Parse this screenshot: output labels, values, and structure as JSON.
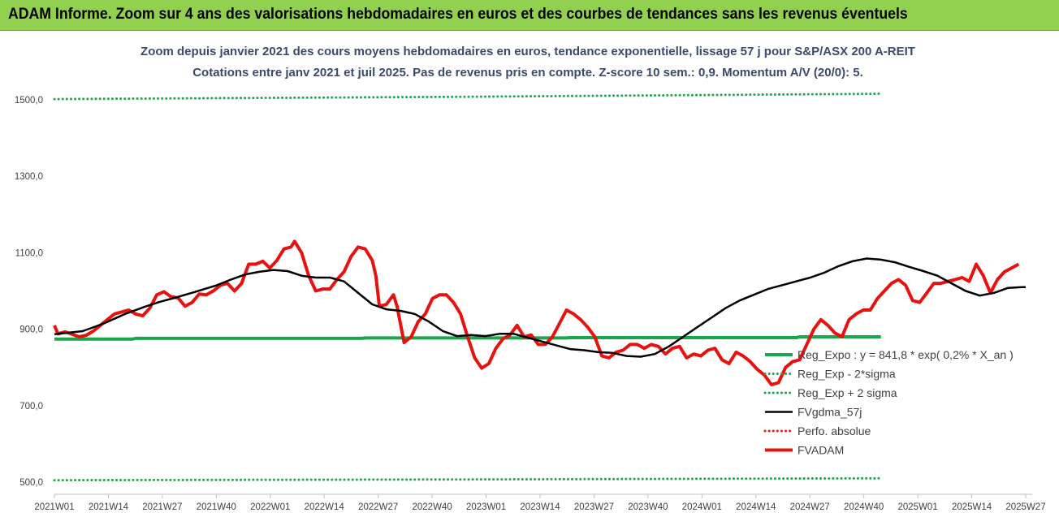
{
  "header": {
    "title": "ADAM Informe. Zoom sur 4 ans des valorisations hebdomadaires en euros et des courbes de tendances sans les revenus éventuels"
  },
  "colors": {
    "banner_bg": "#92d050",
    "reg_expo": "#1aa64a",
    "reg_minus": "#22a74f",
    "reg_plus": "#22a74f",
    "gdma": "#000000",
    "perfo": "#e02020",
    "fvadam": "#e8110f"
  },
  "chart_data": {
    "type": "line",
    "title": "Zoom depuis janvier 2021 des cours moyens hebdomadaires en euros, tendance exponentielle, lissage 57 j pour S&P/ASX 200 A-REIT",
    "subtitle": "Cotations entre janv 2021 et juil 2025. Pas de revenus pris en compte. Z-score 10 sem.: 0,9. Momentum A/V (20/0): 5.",
    "xlabel": "",
    "ylabel": "",
    "ylim": [
      500,
      1500
    ],
    "yticks": [
      "500,0",
      "700,0",
      "900,0",
      "1100,0",
      "1300,0",
      "1500,0"
    ],
    "ytick_values": [
      500,
      700,
      900,
      1100,
      1300,
      1500
    ],
    "xticks": [
      "2021W01",
      "2021W14",
      "2021W27",
      "2021W40",
      "2022W01",
      "2022W14",
      "2022W27",
      "2022W40",
      "2023W01",
      "2023W14",
      "2023W27",
      "2023W40",
      "2024W01",
      "2024W14",
      "2024W27",
      "2024W40",
      "2025W01",
      "2025W14",
      "2025W27"
    ],
    "x_range_weeks": [
      0,
      234
    ],
    "grid": false,
    "legend_position": "bottom-right",
    "series": [
      {
        "name": "Reg_Expo : y = 841,8 * exp( 0,2% *  X_an )",
        "style": "solid-thick",
        "color_key": "reg_expo",
        "points": [
          [
            0,
            874
          ],
          [
            22,
            874
          ],
          [
            23,
            876
          ],
          [
            87,
            876
          ],
          [
            88,
            877
          ],
          [
            145,
            877
          ],
          [
            146,
            878
          ],
          [
            210,
            878
          ],
          [
            211,
            880
          ],
          [
            234,
            880
          ]
        ]
      },
      {
        "name": "Reg_Exp - 2*sigma",
        "style": "dotted",
        "color_key": "reg_minus",
        "points": [
          [
            0,
            505
          ],
          [
            117,
            507
          ],
          [
            234,
            510
          ]
        ]
      },
      {
        "name": "Reg_Exp + 2 sigma",
        "style": "dotted",
        "color_key": "reg_plus",
        "points": [
          [
            0,
            1502
          ],
          [
            117,
            1508
          ],
          [
            234,
            1516
          ]
        ]
      },
      {
        "name": "FVgdma_57j",
        "style": "solid",
        "color_key": "gdma",
        "points": [
          [
            0,
            887
          ],
          [
            8,
            895
          ],
          [
            14,
            915
          ],
          [
            20,
            940
          ],
          [
            26,
            960
          ],
          [
            30,
            972
          ],
          [
            34,
            982
          ],
          [
            40,
            998
          ],
          [
            46,
            1015
          ],
          [
            50,
            1030
          ],
          [
            54,
            1043
          ],
          [
            58,
            1050
          ],
          [
            62,
            1055
          ],
          [
            66,
            1052
          ],
          [
            70,
            1040
          ],
          [
            74,
            1035
          ],
          [
            78,
            1035
          ],
          [
            82,
            1025
          ],
          [
            86,
            995
          ],
          [
            90,
            965
          ],
          [
            94,
            952
          ],
          [
            98,
            948
          ],
          [
            102,
            940
          ],
          [
            106,
            920
          ],
          [
            110,
            895
          ],
          [
            114,
            882
          ],
          [
            118,
            885
          ],
          [
            122,
            882
          ],
          [
            126,
            888
          ],
          [
            130,
            888
          ],
          [
            134,
            878
          ],
          [
            138,
            868
          ],
          [
            142,
            858
          ],
          [
            146,
            848
          ],
          [
            150,
            845
          ],
          [
            154,
            840
          ],
          [
            158,
            838
          ],
          [
            162,
            830
          ],
          [
            166,
            828
          ],
          [
            170,
            835
          ],
          [
            174,
            855
          ],
          [
            178,
            880
          ],
          [
            182,
            905
          ],
          [
            186,
            930
          ],
          [
            190,
            955
          ],
          [
            194,
            975
          ],
          [
            198,
            990
          ],
          [
            202,
            1005
          ],
          [
            206,
            1015
          ],
          [
            210,
            1025
          ],
          [
            214,
            1035
          ],
          [
            218,
            1048
          ],
          [
            222,
            1065
          ],
          [
            226,
            1078
          ],
          [
            230,
            1085
          ],
          [
            234,
            1082
          ],
          [
            238,
            1075
          ],
          [
            242,
            1063
          ],
          [
            246,
            1052
          ],
          [
            250,
            1040
          ],
          [
            254,
            1020
          ],
          [
            258,
            1000
          ],
          [
            262,
            988
          ],
          [
            266,
            995
          ],
          [
            270,
            1008
          ],
          [
            274,
            1010
          ],
          [
            275,
            1010
          ]
        ]
      },
      {
        "name": "Perfo. absolue",
        "style": "dotted",
        "color_key": "perfo",
        "points": []
      },
      {
        "name": "FVADAM",
        "style": "solid-thick",
        "color_key": "fvadam",
        "points": [
          [
            0,
            910
          ],
          [
            1,
            888
          ],
          [
            3,
            893
          ],
          [
            5,
            887
          ],
          [
            7,
            880
          ],
          [
            9,
            884
          ],
          [
            11,
            895
          ],
          [
            13,
            910
          ],
          [
            15,
            925
          ],
          [
            17,
            940
          ],
          [
            19,
            945
          ],
          [
            21,
            950
          ],
          [
            23,
            940
          ],
          [
            25,
            935
          ],
          [
            27,
            955
          ],
          [
            29,
            990
          ],
          [
            31,
            998
          ],
          [
            33,
            985
          ],
          [
            35,
            982
          ],
          [
            37,
            960
          ],
          [
            39,
            970
          ],
          [
            41,
            992
          ],
          [
            43,
            990
          ],
          [
            45,
            1000
          ],
          [
            47,
            1015
          ],
          [
            49,
            1020
          ],
          [
            51,
            1000
          ],
          [
            53,
            1020
          ],
          [
            55,
            1070
          ],
          [
            57,
            1070
          ],
          [
            59,
            1078
          ],
          [
            61,
            1060
          ],
          [
            63,
            1080
          ],
          [
            65,
            1110
          ],
          [
            67,
            1115
          ],
          [
            68,
            1130
          ],
          [
            70,
            1100
          ],
          [
            72,
            1040
          ],
          [
            74,
            1000
          ],
          [
            76,
            1005
          ],
          [
            78,
            1005
          ],
          [
            80,
            1030
          ],
          [
            82,
            1050
          ],
          [
            84,
            1090
          ],
          [
            86,
            1115
          ],
          [
            88,
            1110
          ],
          [
            90,
            1080
          ],
          [
            91,
            1040
          ],
          [
            92,
            960
          ],
          [
            94,
            965
          ],
          [
            96,
            990
          ],
          [
            97,
            960
          ],
          [
            99,
            865
          ],
          [
            101,
            880
          ],
          [
            103,
            920
          ],
          [
            105,
            940
          ],
          [
            107,
            980
          ],
          [
            109,
            990
          ],
          [
            111,
            990
          ],
          [
            113,
            970
          ],
          [
            115,
            940
          ],
          [
            117,
            880
          ],
          [
            119,
            825
          ],
          [
            121,
            798
          ],
          [
            123,
            810
          ],
          [
            125,
            850
          ],
          [
            127,
            875
          ],
          [
            129,
            885
          ],
          [
            131,
            910
          ],
          [
            133,
            880
          ],
          [
            135,
            885
          ],
          [
            137,
            860
          ],
          [
            139,
            860
          ],
          [
            141,
            880
          ],
          [
            143,
            915
          ],
          [
            145,
            950
          ],
          [
            147,
            940
          ],
          [
            149,
            925
          ],
          [
            151,
            905
          ],
          [
            153,
            880
          ],
          [
            155,
            830
          ],
          [
            157,
            825
          ],
          [
            159,
            840
          ],
          [
            161,
            845
          ],
          [
            163,
            860
          ],
          [
            165,
            860
          ],
          [
            167,
            850
          ],
          [
            169,
            860
          ],
          [
            171,
            855
          ],
          [
            173,
            835
          ],
          [
            175,
            850
          ],
          [
            177,
            855
          ],
          [
            179,
            825
          ],
          [
            181,
            835
          ],
          [
            183,
            830
          ],
          [
            185,
            845
          ],
          [
            187,
            850
          ],
          [
            189,
            820
          ],
          [
            191,
            810
          ],
          [
            193,
            840
          ],
          [
            195,
            830
          ],
          [
            197,
            815
          ],
          [
            199,
            795
          ],
          [
            201,
            780
          ],
          [
            203,
            755
          ],
          [
            205,
            760
          ],
          [
            207,
            800
          ],
          [
            209,
            815
          ],
          [
            211,
            820
          ],
          [
            213,
            860
          ],
          [
            215,
            900
          ],
          [
            217,
            925
          ],
          [
            219,
            910
          ],
          [
            221,
            890
          ],
          [
            223,
            880
          ],
          [
            225,
            925
          ],
          [
            227,
            940
          ],
          [
            229,
            950
          ],
          [
            231,
            950
          ],
          [
            233,
            980
          ],
          [
            235,
            1000
          ],
          [
            237,
            1020
          ],
          [
            239,
            1030
          ],
          [
            241,
            1015
          ],
          [
            243,
            975
          ],
          [
            245,
            970
          ],
          [
            247,
            995
          ],
          [
            249,
            1020
          ],
          [
            251,
            1020
          ],
          [
            253,
            1025
          ],
          [
            255,
            1030
          ],
          [
            257,
            1035
          ],
          [
            259,
            1025
          ],
          [
            261,
            1070
          ],
          [
            263,
            1040
          ],
          [
            265,
            995
          ],
          [
            267,
            1030
          ],
          [
            269,
            1050
          ],
          [
            271,
            1060
          ],
          [
            273,
            1070
          ]
        ]
      }
    ]
  },
  "legend": {
    "items": [
      {
        "label": "Reg_Expo : y = 841,8 * exp( 0,2% *  X_an )"
      },
      {
        "label": "Reg_Exp - 2*sigma"
      },
      {
        "label": "Reg_Exp + 2 sigma"
      },
      {
        "label": "FVgdma_57j"
      },
      {
        "label": "Perfo. absolue"
      },
      {
        "label": "FVADAM"
      }
    ]
  }
}
